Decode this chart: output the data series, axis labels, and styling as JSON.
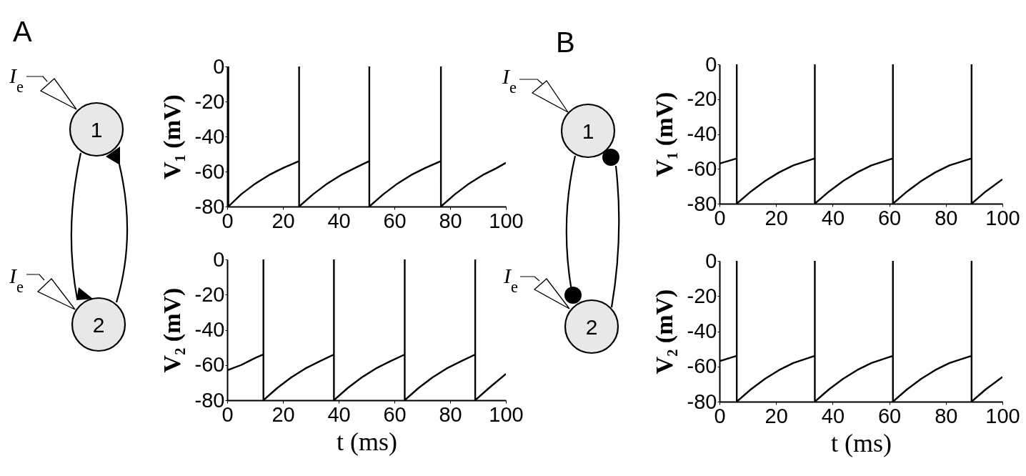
{
  "chart_data": [
    {
      "type": "line",
      "title": "A",
      "ylabel": "V₁ (mV)",
      "annotations": [
        "I$_{e}$",
        "1",
        "I$_{e}$",
        "2"
      ],
      "xlim": [
        0,
        100
      ],
      "ylim": [
        -80,
        0
      ],
      "xticks": [
        0,
        20,
        40,
        60,
        80,
        100
      ],
      "yticks": [
        0,
        -20,
        -40,
        -60,
        -80
      ],
      "x": [
        0.4,
        0.4,
        5,
        10,
        15,
        20,
        25.8,
        25.8,
        25.8,
        30.8,
        35.8,
        40.8,
        45.8,
        51,
        51,
        51,
        56,
        61,
        66,
        71,
        76.7,
        76.7,
        76.7,
        81.7,
        86.7,
        91.7,
        96.7,
        100
      ],
      "series": [
        {
          "color": "#000000",
          "values": [
            0,
            -80,
            -73,
            -67,
            -62,
            -58,
            -54,
            0,
            -80,
            -73,
            -67,
            -62,
            -58,
            -54,
            0,
            -80,
            -73,
            -67,
            -62,
            -58,
            -54,
            0,
            -80,
            -73,
            -67,
            -62,
            -58,
            -55
          ]
        }
      ]
    },
    {
      "type": "line",
      "xlabel": "t (ms)",
      "ylabel": "V₂ (mV)",
      "xlim": [
        0,
        100
      ],
      "ylim": [
        -80,
        0
      ],
      "xticks": [
        0,
        20,
        40,
        60,
        80,
        100
      ],
      "yticks": [
        0,
        -20,
        -40,
        -60,
        -80
      ],
      "x": [
        0,
        5,
        10,
        13,
        13,
        13,
        18,
        23,
        28,
        33,
        38.3,
        38.3,
        38.3,
        43.3,
        48.3,
        53.3,
        58.3,
        63.7,
        63.7,
        63.7,
        68.7,
        73.7,
        78.7,
        83.7,
        89,
        89,
        89,
        94,
        100
      ],
      "series": [
        {
          "color": "#000000",
          "values": [
            -63,
            -60,
            -56,
            -54,
            0,
            -80,
            -73,
            -67,
            -62,
            -58,
            -54,
            0,
            -80,
            -73,
            -67,
            -62,
            -58,
            -54,
            0,
            -80,
            -73,
            -67,
            -62,
            -58,
            -54,
            0,
            -80,
            -73,
            -65
          ]
        }
      ]
    },
    {
      "type": "line",
      "title": "B",
      "ylabel": "V₁ (mV)",
      "annotations": [
        "I$_{e}$",
        "1",
        "I$_{e}$",
        "2"
      ],
      "xlim": [
        0,
        100
      ],
      "ylim": [
        -80,
        0
      ],
      "xticks": [
        0,
        20,
        40,
        60,
        80,
        100
      ],
      "yticks": [
        0,
        -20,
        -40,
        -60,
        -80
      ],
      "x": [
        0,
        6.1,
        6.1,
        6.1,
        11.1,
        16.1,
        21.1,
        26.1,
        33.7,
        33.7,
        33.7,
        38.7,
        43.7,
        48.7,
        53.7,
        61.3,
        61.3,
        61.3,
        66.3,
        71.3,
        76.3,
        81.3,
        89.1,
        89.1,
        89.1,
        94.1,
        100
      ],
      "series": [
        {
          "color": "#000000",
          "values": [
            -57,
            -54,
            0,
            -80,
            -73,
            -67,
            -62,
            -58,
            -54,
            0,
            -80,
            -73,
            -67,
            -62,
            -58,
            -54,
            0,
            -80,
            -73,
            -67,
            -62,
            -58,
            -54,
            0,
            -80,
            -73,
            -66
          ]
        }
      ]
    },
    {
      "type": "line",
      "xlabel": "t (ms)",
      "ylabel": "V₂ (mV)",
      "xlim": [
        0,
        100
      ],
      "ylim": [
        -80,
        0
      ],
      "xticks": [
        0,
        20,
        40,
        60,
        80,
        100
      ],
      "yticks": [
        0,
        -20,
        -40,
        -60,
        -80
      ],
      "x": [
        0,
        6.1,
        6.1,
        6.1,
        11.1,
        16.1,
        21.1,
        26.1,
        33.7,
        33.7,
        33.7,
        38.7,
        43.7,
        48.7,
        53.7,
        61.3,
        61.3,
        61.3,
        66.3,
        71.3,
        76.3,
        81.3,
        89.1,
        89.1,
        89.1,
        94.1,
        100
      ],
      "series": [
        {
          "color": "#000000",
          "values": [
            -57,
            -54,
            0,
            -80,
            -73,
            -67,
            -62,
            -58,
            -54,
            0,
            -80,
            -73,
            -67,
            -62,
            -58,
            -54,
            0,
            -80,
            -73,
            -67,
            -62,
            -58,
            -54,
            0,
            -80,
            -73,
            -66
          ]
        }
      ]
    }
  ]
}
